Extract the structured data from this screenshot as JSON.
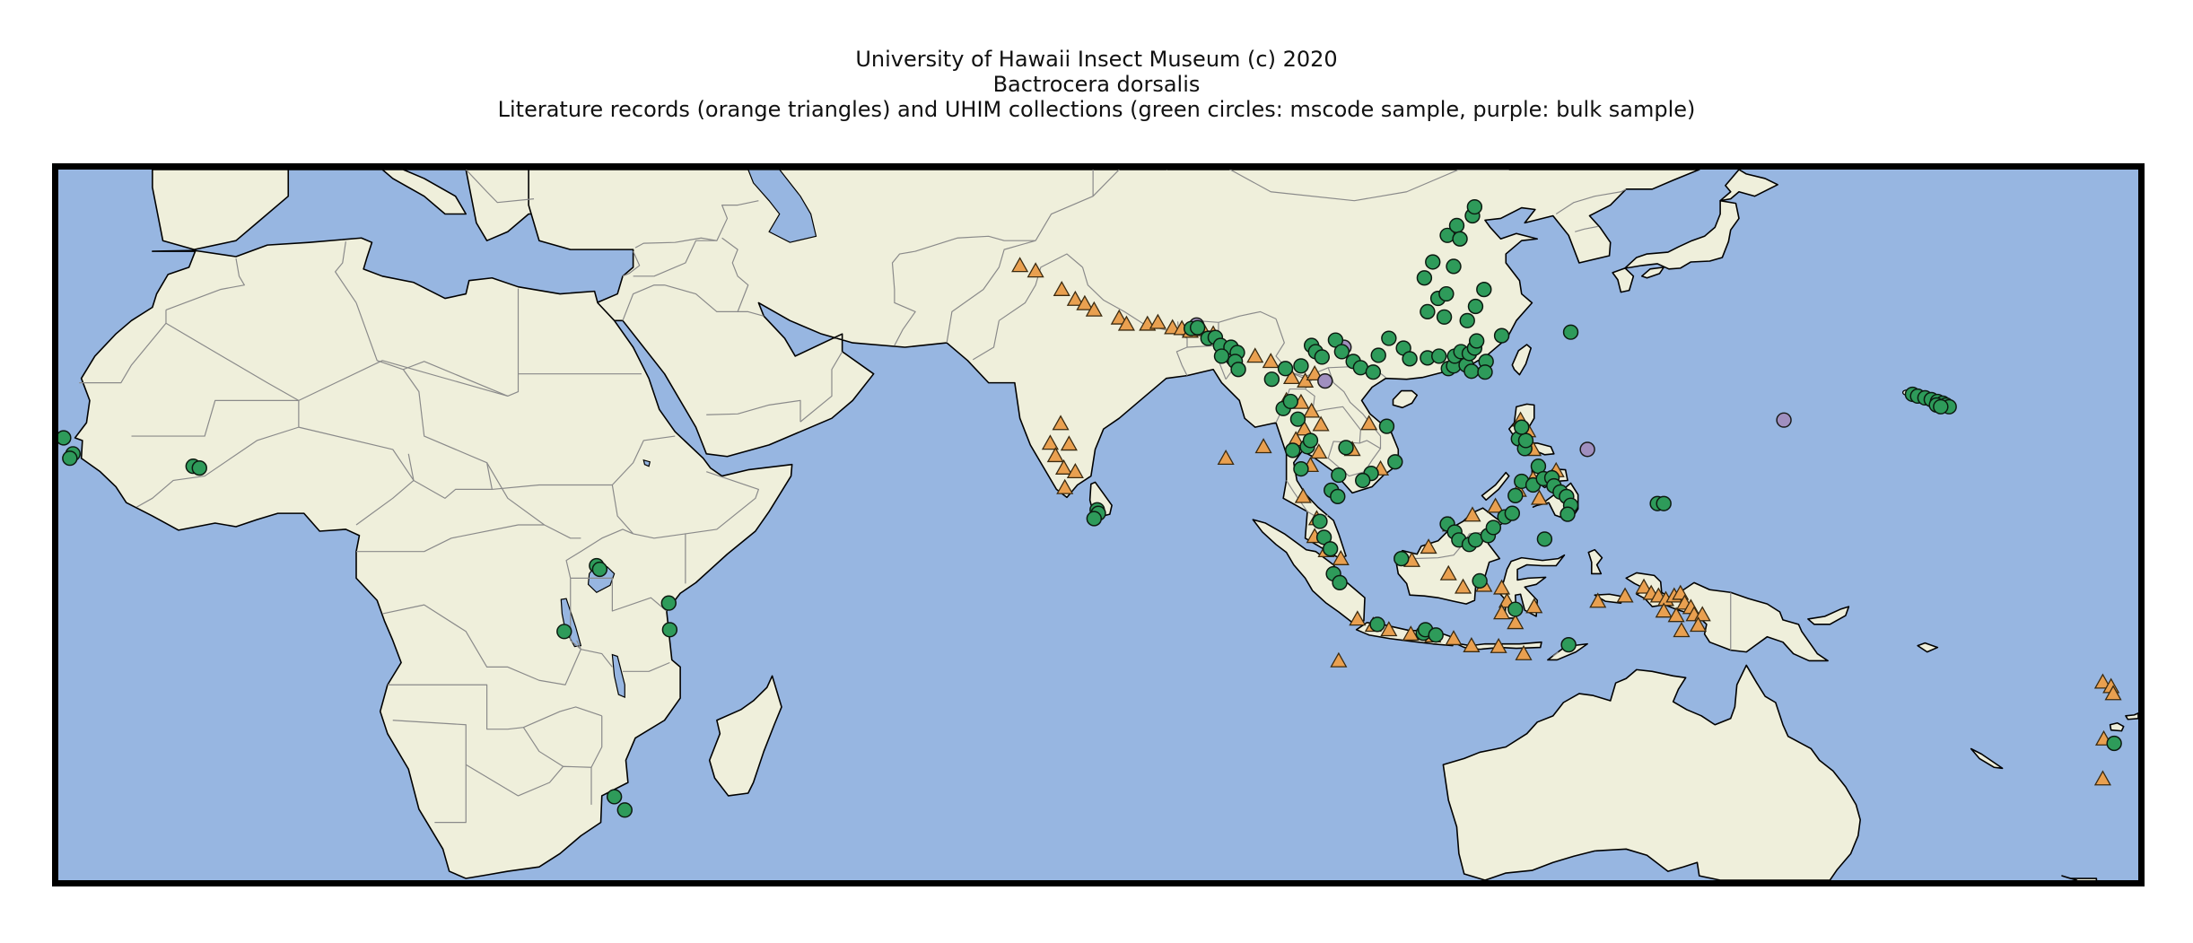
{
  "title": {
    "line1": "University of Hawaii Insect Museum (c) 2020",
    "line2": "Bactrocera dorsalis",
    "line3": "Literature records (orange triangles) and UHIM collections (green circles: mscode sample, purple: bulk sample)"
  },
  "colors": {
    "ocean": "#97b6e1",
    "land": "#efefdb",
    "border": "#8a8a8a",
    "coast": "#000000",
    "literature": "#e9a050",
    "mscode": "#2e9b5a",
    "bulk": "#a08fbf"
  },
  "map_data": {
    "extent": {
      "lon": [
        -19,
        180
      ],
      "lat": [
        -35,
        45
      ]
    },
    "marker_types": {
      "literature": "orange-triangle",
      "mscode": "green-circle",
      "bulk": "purple-circle"
    },
    "literature_records": [
      [
        73.0,
        34.2
      ],
      [
        74.5,
        33.6
      ],
      [
        77.0,
        31.5
      ],
      [
        78.3,
        30.4
      ],
      [
        79.2,
        29.9
      ],
      [
        80.1,
        29.2
      ],
      [
        82.5,
        28.3
      ],
      [
        83.2,
        27.6
      ],
      [
        85.2,
        27.6
      ],
      [
        86.2,
        27.8
      ],
      [
        87.6,
        27.2
      ],
      [
        88.5,
        27.1
      ],
      [
        89.3,
        26.8
      ],
      [
        90.5,
        27.0
      ],
      [
        91.5,
        26.5
      ],
      [
        95.5,
        24.0
      ],
      [
        97.0,
        23.4
      ],
      [
        99.0,
        21.6
      ],
      [
        100.3,
        21.2
      ],
      [
        101.2,
        22.0
      ],
      [
        98.5,
        19.0
      ],
      [
        99.9,
        18.8
      ],
      [
        100.9,
        17.8
      ],
      [
        101.8,
        16.3
      ],
      [
        100.2,
        15.8
      ],
      [
        99.4,
        14.6
      ],
      [
        101.6,
        13.2
      ],
      [
        104.8,
        13.5
      ],
      [
        106.4,
        16.4
      ],
      [
        107.5,
        11.3
      ],
      [
        100.8,
        11.7
      ],
      [
        100.1,
        8.2
      ],
      [
        101.4,
        5.7
      ],
      [
        101.2,
        3.7
      ],
      [
        102.3,
        2.1
      ],
      [
        103.7,
        1.2
      ],
      [
        76.9,
        16.4
      ],
      [
        75.9,
        14.2
      ],
      [
        77.7,
        14.1
      ],
      [
        76.4,
        12.8
      ],
      [
        77.2,
        11.4
      ],
      [
        78.3,
        11.0
      ],
      [
        77.3,
        9.2
      ],
      [
        92.7,
        12.5
      ],
      [
        96.3,
        13.8
      ],
      [
        120.9,
        16.8
      ],
      [
        121.6,
        15.6
      ],
      [
        122.1,
        13.5
      ],
      [
        124.3,
        11.1
      ],
      [
        122.1,
        10.2
      ],
      [
        124.3,
        9.6
      ],
      [
        122.7,
        8.0
      ],
      [
        120.7,
        8.9
      ],
      [
        118.5,
        7.1
      ],
      [
        116.3,
        6.1
      ],
      [
        114.2,
        5.0
      ],
      [
        112.1,
        2.5
      ],
      [
        110.5,
        1.0
      ],
      [
        114.0,
        -0.5
      ],
      [
        115.4,
        -2.0
      ],
      [
        117.4,
        -1.8
      ],
      [
        119.1,
        -2.1
      ],
      [
        119.6,
        -3.6
      ],
      [
        119.1,
        -4.9
      ],
      [
        122.2,
        -4.2
      ],
      [
        120.4,
        -6.0
      ],
      [
        105.3,
        -5.6
      ],
      [
        106.8,
        -6.3
      ],
      [
        108.3,
        -6.8
      ],
      [
        110.4,
        -7.3
      ],
      [
        112.5,
        -7.5
      ],
      [
        114.5,
        -7.8
      ],
      [
        116.2,
        -8.6
      ],
      [
        118.8,
        -8.7
      ],
      [
        121.2,
        -9.5
      ],
      [
        103.5,
        -10.3
      ],
      [
        128.3,
        -3.6
      ],
      [
        130.9,
        -3.0
      ],
      [
        132.7,
        -2.0
      ],
      [
        133.4,
        -2.7
      ],
      [
        134.1,
        -3.0
      ],
      [
        134.8,
        -3.4
      ],
      [
        135.6,
        -3.0
      ],
      [
        136.2,
        -2.7
      ],
      [
        136.6,
        -3.8
      ],
      [
        134.6,
        -4.7
      ],
      [
        135.8,
        -5.2
      ],
      [
        137.2,
        -4.3
      ],
      [
        137.5,
        -5.1
      ],
      [
        138.3,
        -5.1
      ],
      [
        137.9,
        -6.3
      ],
      [
        136.3,
        -6.9
      ],
      [
        176.6,
        -12.7
      ],
      [
        177.4,
        -13.2
      ],
      [
        177.6,
        -14.0
      ],
      [
        176.7,
        -19.1
      ],
      [
        176.6,
        -23.6
      ]
    ],
    "mscode_samples": [
      [
        -18.5,
        14.8
      ],
      [
        -17.6,
        13.0
      ],
      [
        -17.9,
        12.5
      ],
      [
        -6.1,
        11.6
      ],
      [
        -5.5,
        11.4
      ],
      [
        32.5,
        0.4
      ],
      [
        32.8,
        0.0
      ],
      [
        39.4,
        -3.8
      ],
      [
        39.5,
        -6.8
      ],
      [
        29.4,
        -7.0
      ],
      [
        34.2,
        -25.6
      ],
      [
        35.2,
        -27.1
      ],
      [
        80.4,
        6.7
      ],
      [
        80.5,
        6.3
      ],
      [
        80.1,
        5.7
      ],
      [
        89.4,
        27.1
      ],
      [
        90.0,
        27.2
      ],
      [
        91.0,
        26.0
      ],
      [
        91.7,
        26.1
      ],
      [
        92.2,
        25.2
      ],
      [
        93.2,
        25.0
      ],
      [
        93.8,
        24.4
      ],
      [
        92.3,
        24.0
      ],
      [
        93.6,
        23.4
      ],
      [
        93.9,
        22.5
      ],
      [
        97.1,
        21.4
      ],
      [
        98.4,
        22.6
      ],
      [
        99.9,
        22.9
      ],
      [
        100.9,
        25.2
      ],
      [
        101.3,
        24.5
      ],
      [
        101.9,
        23.9
      ],
      [
        103.2,
        25.8
      ],
      [
        103.8,
        24.5
      ],
      [
        104.9,
        23.4
      ],
      [
        105.6,
        22.7
      ],
      [
        106.8,
        22.2
      ],
      [
        107.3,
        24.1
      ],
      [
        108.3,
        26.0
      ],
      [
        109.7,
        24.9
      ],
      [
        110.3,
        23.7
      ],
      [
        112.0,
        23.8
      ],
      [
        113.1,
        24.0
      ],
      [
        114.0,
        22.6
      ],
      [
        114.5,
        22.9
      ],
      [
        114.6,
        24.0
      ],
      [
        115.2,
        24.5
      ],
      [
        115.7,
        23.0
      ],
      [
        116.0,
        24.3
      ],
      [
        116.2,
        22.3
      ],
      [
        116.5,
        24.9
      ],
      [
        116.7,
        25.7
      ],
      [
        117.6,
        23.4
      ],
      [
        117.5,
        22.2
      ],
      [
        119.1,
        26.3
      ],
      [
        125.7,
        26.7
      ],
      [
        111.7,
        32.8
      ],
      [
        113.0,
        30.5
      ],
      [
        113.8,
        31.0
      ],
      [
        114.5,
        34.1
      ],
      [
        112.5,
        34.6
      ],
      [
        113.9,
        37.6
      ],
      [
        114.8,
        38.7
      ],
      [
        112.0,
        29.0
      ],
      [
        113.6,
        28.4
      ],
      [
        115.8,
        28.0
      ],
      [
        116.6,
        29.6
      ],
      [
        117.4,
        31.5
      ],
      [
        116.3,
        39.8
      ],
      [
        116.5,
        40.8
      ],
      [
        115.1,
        37.2
      ],
      [
        98.2,
        18.1
      ],
      [
        98.9,
        18.9
      ],
      [
        99.6,
        16.9
      ],
      [
        99.1,
        13.4
      ],
      [
        100.5,
        13.8
      ],
      [
        100.8,
        14.5
      ],
      [
        99.9,
        11.3
      ],
      [
        103.5,
        10.6
      ],
      [
        104.2,
        13.7
      ],
      [
        106.6,
        10.8
      ],
      [
        105.8,
        10.0
      ],
      [
        108.1,
        16.1
      ],
      [
        108.9,
        12.1
      ],
      [
        102.8,
        8.9
      ],
      [
        103.4,
        8.2
      ],
      [
        101.7,
        5.4
      ],
      [
        102.1,
        3.6
      ],
      [
        102.7,
        2.3
      ],
      [
        103.0,
        -0.5
      ],
      [
        103.6,
        -1.5
      ],
      [
        107.2,
        -6.2
      ],
      [
        111.6,
        -7.2
      ],
      [
        111.8,
        -6.8
      ],
      [
        112.8,
        -7.4
      ],
      [
        117.0,
        -1.3
      ],
      [
        109.5,
        1.2
      ],
      [
        113.9,
        5.1
      ],
      [
        114.6,
        4.2
      ],
      [
        115.0,
        3.3
      ],
      [
        116.0,
        2.8
      ],
      [
        116.6,
        3.3
      ],
      [
        117.8,
        3.8
      ],
      [
        118.3,
        4.7
      ],
      [
        119.4,
        5.9
      ],
      [
        120.1,
        6.3
      ],
      [
        120.4,
        8.3
      ],
      [
        121.0,
        9.9
      ],
      [
        122.1,
        9.5
      ],
      [
        122.6,
        11.6
      ],
      [
        123.1,
        10.2
      ],
      [
        123.9,
        10.3
      ],
      [
        124.1,
        9.4
      ],
      [
        124.7,
        8.7
      ],
      [
        125.3,
        8.2
      ],
      [
        125.7,
        7.2
      ],
      [
        125.4,
        6.2
      ],
      [
        120.7,
        14.7
      ],
      [
        121.3,
        13.6
      ],
      [
        121.4,
        14.5
      ],
      [
        121.0,
        16.0
      ],
      [
        123.2,
        3.4
      ],
      [
        120.4,
        -4.5
      ],
      [
        134.0,
        7.4
      ],
      [
        134.6,
        7.4
      ],
      [
        125.5,
        -8.5
      ],
      [
        158.4,
        19.7
      ],
      [
        158.9,
        19.5
      ],
      [
        159.6,
        19.3
      ],
      [
        160.2,
        19.1
      ],
      [
        160.8,
        18.9
      ],
      [
        161.3,
        18.7
      ],
      [
        161.6,
        18.5
      ],
      [
        161.9,
        18.3
      ],
      [
        160.7,
        18.5
      ],
      [
        161.1,
        18.3
      ],
      [
        177.7,
        -19.6
      ]
    ],
    "bulk_samples": [
      [
        89.9,
        27.5
      ],
      [
        92.5,
        24.4
      ],
      [
        93.0,
        24.2
      ],
      [
        93.4,
        23.7
      ],
      [
        104.0,
        25.0
      ],
      [
        102.2,
        21.2
      ],
      [
        127.3,
        13.5
      ],
      [
        146.1,
        16.8
      ]
    ]
  }
}
